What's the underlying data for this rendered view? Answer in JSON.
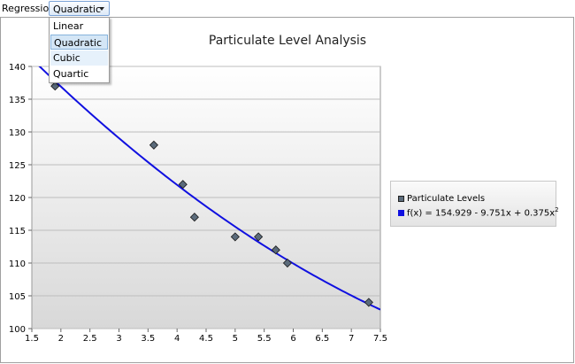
{
  "toolbar": {
    "regression_label": "Regression:",
    "regression_selected": "Quadratic",
    "regression_options": [
      "Linear",
      "Quadratic",
      "Cubic",
      "Quartic"
    ],
    "dropdown_open": true,
    "hovered_option": "Cubic"
  },
  "colors": {
    "curve": "#1010e0",
    "marker_fill": "#5b6b7b",
    "grid": "#bdbdbd",
    "plot_gradient_top": "#ffffff",
    "plot_gradient_bottom": "#d8d8d8",
    "dropdown_selected": "#d4e6f6"
  },
  "legend": {
    "points_label": "Particulate Levels",
    "curve_label_prefix": "f(x) = 154.929 - 9.751x + 0.375x",
    "curve_label_exponent": "2"
  },
  "chart_data": {
    "type": "scatter",
    "title": "Particulate Level Analysis",
    "xlabel": "",
    "ylabel": "",
    "xlim": [
      1.5,
      7.5
    ],
    "ylim": [
      100,
      140
    ],
    "xticks": [
      "1.5",
      "2",
      "2.5",
      "3",
      "3.5",
      "4",
      "4.5",
      "5",
      "5.5",
      "6",
      "6.5",
      "7",
      "7.5"
    ],
    "yticks": [
      "100",
      "105",
      "110",
      "115",
      "120",
      "125",
      "130",
      "135",
      "140"
    ],
    "grid": "horizontal",
    "legend_position": "right",
    "series": [
      {
        "name": "Particulate Levels",
        "kind": "points",
        "x": [
          1.9,
          3.6,
          4.1,
          4.3,
          5.0,
          5.4,
          5.7,
          5.9,
          7.3
        ],
        "y": [
          137,
          128,
          122,
          117,
          114,
          114,
          112,
          110,
          104
        ]
      },
      {
        "name": "f(x) = 154.929 - 9.751x + 0.375x2",
        "kind": "regression",
        "coefficients": [
          154.929,
          -9.751,
          0.375
        ]
      }
    ]
  }
}
